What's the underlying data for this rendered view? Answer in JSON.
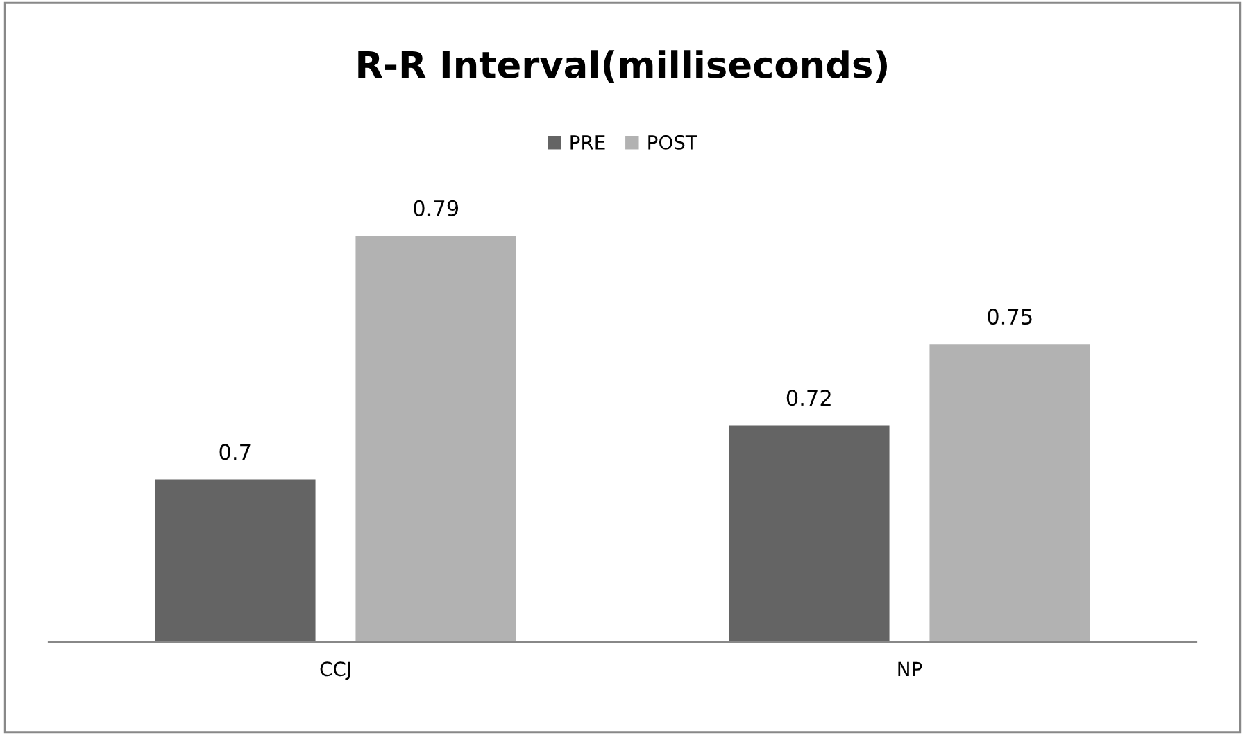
{
  "chart_data": {
    "type": "bar",
    "title": "R-R Interval(milliseconds)",
    "categories": [
      "CCJ",
      "NP"
    ],
    "series": [
      {
        "name": "PRE",
        "color": "#646464",
        "values": [
          0.7,
          0.72
        ]
      },
      {
        "name": "POST",
        "color": "#b2b2b2",
        "values": [
          0.79,
          0.75
        ]
      }
    ],
    "ylim": [
      0.64,
      0.79
    ],
    "data_labels": true,
    "tick_labels": "x",
    "grid": false,
    "legend": "top"
  }
}
